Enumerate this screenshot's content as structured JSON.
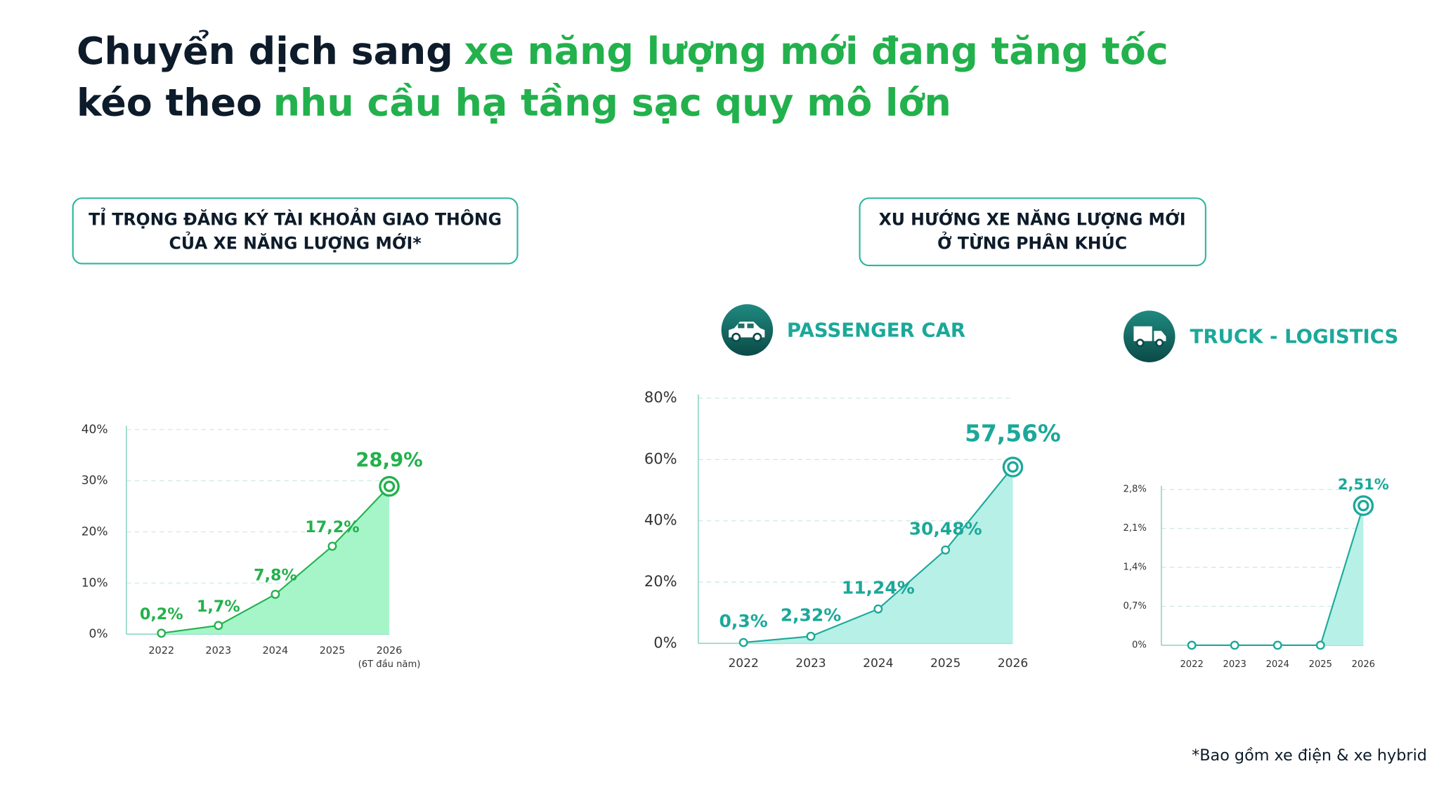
{
  "header": {
    "title_line1": [
      "Chuyển dịch sang",
      "xe năng lượng mới đang tăng tốc"
    ],
    "title_line2": [
      "kéo theo",
      "nhu cầu hạ tầng sạc quy mô lớn"
    ]
  },
  "left_box": {
    "lines": [
      "TỈ TRỌNG ĐĂNG KÝ TÀI KHOẢN GIAO THÔNG",
      "CỦA XE NĂNG LƯỢNG MỚI*"
    ]
  },
  "right_box": {
    "lines": [
      "XU HƯỚNG XE NĂNG LƯỢNG MỚI",
      "Ở TỪNG PHÂN KHÚC"
    ]
  },
  "segments": [
    "PASSENGER CAR",
    "TRUCK - LOGISTICS"
  ],
  "footnote": "*Bao gồm xe điện & xe hybrid",
  "chart_data": [
    {
      "type": "area",
      "categories": [
        "2022",
        "2023",
        "2024",
        "2025",
        "2026"
      ],
      "category_notes": [
        null,
        null,
        null,
        null,
        "(6T đầu năm)"
      ],
      "values": [
        0.2,
        1.7,
        7.8,
        17.2,
        28.9
      ],
      "value_labels": [
        "0,2%",
        "1,7%",
        "7,8%",
        "17,2%",
        "28,9%"
      ],
      "color": "#22b14c",
      "fill_color": "#a6f5c9",
      "ylim": [
        0,
        40
      ],
      "yticks": [
        {
          "value": 0,
          "label": "0%"
        },
        {
          "value": 10,
          "label": "10%"
        },
        {
          "value": 20,
          "label": "20%"
        },
        {
          "value": 30,
          "label": "30%"
        },
        {
          "value": 40,
          "label": "40%"
        }
      ],
      "grid": true
    },
    {
      "type": "area",
      "categories": [
        "2022",
        "2023",
        "2024",
        "2025",
        "2026"
      ],
      "values": [
        0.3,
        2.32,
        11.24,
        30.48,
        57.56
      ],
      "value_labels": [
        "0,3%",
        "2,32%",
        "11,24%",
        "30,48%",
        "57,56%"
      ],
      "color": "#1ba89a",
      "fill_color": "#b6f0e6",
      "ylim": [
        0,
        80
      ],
      "yticks": [
        {
          "value": 0,
          "label": "0%"
        },
        {
          "value": 20,
          "label": "20%"
        },
        {
          "value": 40,
          "label": "40%"
        },
        {
          "value": 60,
          "label": "60%"
        },
        {
          "value": 80,
          "label": "80%"
        }
      ],
      "grid": true
    },
    {
      "type": "area",
      "categories": [
        "2022",
        "2023",
        "2024",
        "2025",
        "2026"
      ],
      "values": [
        0,
        0,
        0,
        0,
        2.51
      ],
      "value_labels": [
        null,
        null,
        null,
        null,
        "2,51%"
      ],
      "color": "#1ba89a",
      "fill_color": "#b6f0e6",
      "ylim": [
        0,
        2.8
      ],
      "yticks": [
        {
          "value": 0,
          "label": "0%"
        },
        {
          "value": 0.7,
          "label": "0,7%"
        },
        {
          "value": 1.4,
          "label": "1,4%"
        },
        {
          "value": 2.1,
          "label": "2,1%"
        },
        {
          "value": 2.8,
          "label": "2,8%"
        }
      ],
      "grid": true
    }
  ]
}
